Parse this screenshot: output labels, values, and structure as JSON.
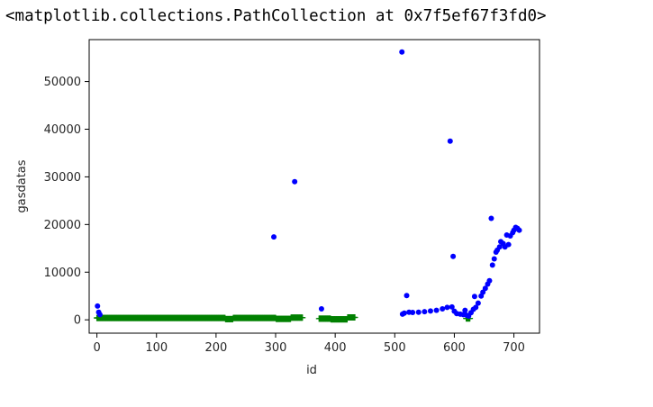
{
  "output": {
    "repr": "<matplotlib.collections.PathCollection at 0x7f5ef67f3fd0>"
  },
  "chart_data": {
    "type": "scatter",
    "xlabel": "id",
    "ylabel": "gasdatas",
    "xlim": [
      -13,
      743
    ],
    "ylim": [
      -2800,
      58800
    ],
    "xticks": [
      0,
      100,
      200,
      300,
      400,
      500,
      600,
      700
    ],
    "yticks": [
      0,
      10000,
      20000,
      30000,
      40000,
      50000
    ],
    "grid": false,
    "series": [
      {
        "marker": "circle",
        "color": "#0000ff",
        "points": [
          [
            1,
            2900
          ],
          [
            3,
            1600
          ],
          [
            5,
            1100
          ],
          [
            297,
            17400
          ],
          [
            332,
            29000
          ],
          [
            377,
            2300
          ],
          [
            512,
            56200
          ],
          [
            513,
            1200
          ],
          [
            516,
            1400
          ],
          [
            520,
            5100
          ],
          [
            524,
            1600
          ],
          [
            530,
            1550
          ],
          [
            540,
            1600
          ],
          [
            550,
            1700
          ],
          [
            560,
            1850
          ],
          [
            570,
            2000
          ],
          [
            580,
            2300
          ],
          [
            588,
            2600
          ],
          [
            593,
            37500
          ],
          [
            596,
            2700
          ],
          [
            598,
            13300
          ],
          [
            600,
            1800
          ],
          [
            604,
            1300
          ],
          [
            610,
            1200
          ],
          [
            615,
            1100
          ],
          [
            618,
            2000
          ],
          [
            620,
            1000
          ],
          [
            624,
            800
          ],
          [
            628,
            1500
          ],
          [
            632,
            2200
          ],
          [
            634,
            4900
          ],
          [
            636,
            2600
          ],
          [
            640,
            3500
          ],
          [
            645,
            5000
          ],
          [
            648,
            5800
          ],
          [
            652,
            6600
          ],
          [
            656,
            7500
          ],
          [
            659,
            8200
          ],
          [
            662,
            21300
          ],
          [
            664,
            11500
          ],
          [
            667,
            12800
          ],
          [
            670,
            14200
          ],
          [
            672,
            14600
          ],
          [
            676,
            15300
          ],
          [
            678,
            16400
          ],
          [
            682,
            16000
          ],
          [
            685,
            15300
          ],
          [
            688,
            17800
          ],
          [
            691,
            15800
          ],
          [
            694,
            17600
          ],
          [
            698,
            18300
          ],
          [
            700,
            18800
          ],
          [
            703,
            19400
          ],
          [
            706,
            19200
          ],
          [
            709,
            18800
          ]
        ]
      },
      {
        "marker": "plus",
        "color": "#008000",
        "runs": [
          {
            "x0": 0,
            "x1": 215,
            "y": 400
          },
          {
            "x0": 216,
            "x1": 228,
            "y": 150
          },
          {
            "x0": 229,
            "x1": 300,
            "y": 400
          },
          {
            "x0": 301,
            "x1": 325,
            "y": 200
          },
          {
            "x0": 326,
            "x1": 345,
            "y": 450
          },
          {
            "x0": 373,
            "x1": 392,
            "y": 250
          },
          {
            "x0": 393,
            "x1": 420,
            "y": 100
          },
          {
            "x0": 421,
            "x1": 433,
            "y": 500
          },
          {
            "x0": 620,
            "x1": 626,
            "y": 300
          }
        ]
      }
    ]
  }
}
